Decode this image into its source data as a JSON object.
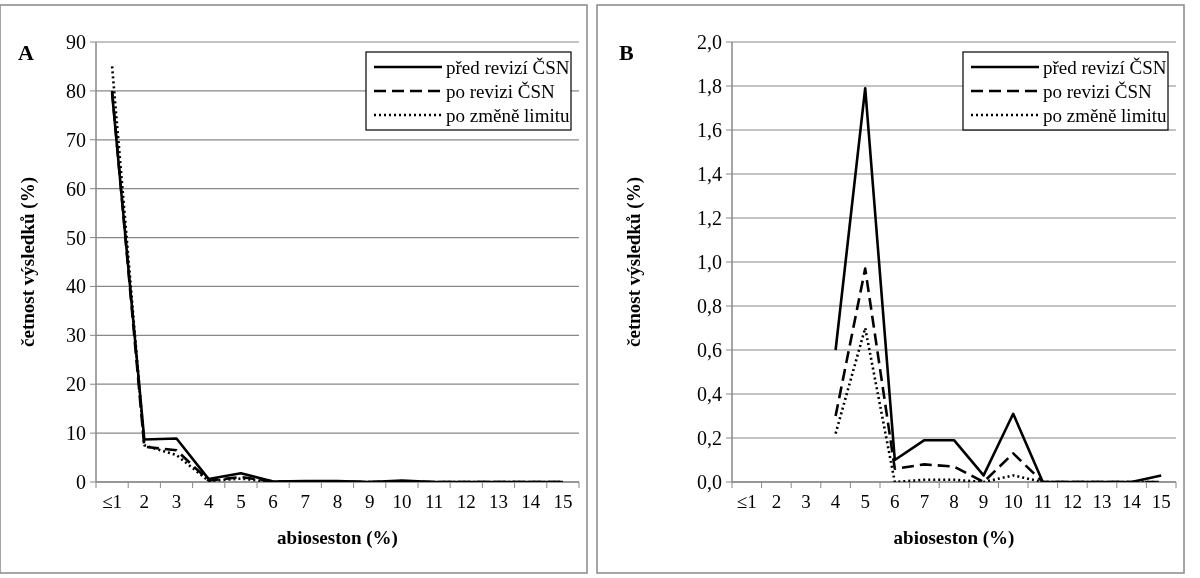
{
  "chart_data": [
    {
      "type": "line",
      "title": "A",
      "xlabel": "abioseston (%)",
      "ylabel": "četnost výsledků (%)",
      "categories": [
        "≤1",
        "2",
        "3",
        "4",
        "5",
        "6",
        "7",
        "8",
        "9",
        "10",
        "11",
        "12",
        "13",
        "14",
        "15"
      ],
      "ylim": [
        0,
        90
      ],
      "yticks": [
        0,
        10,
        20,
        30,
        40,
        50,
        60,
        70,
        80,
        90
      ],
      "grid": "y",
      "legend": "top right",
      "marker": "none",
      "series": [
        {
          "name": "před revizí ČSN",
          "color": "#000000",
          "line_style": "solid",
          "values": [
            79.5,
            8.7,
            8.9,
            0.6,
            1.8,
            0.1,
            0.2,
            0.2,
            0,
            0.3,
            0,
            0,
            0,
            0,
            0
          ]
        },
        {
          "name": "po revizi ČSN",
          "color": "#000000",
          "line_style": "dashed",
          "values": [
            80,
            7.2,
            6.5,
            0.3,
            1,
            0.1,
            0.1,
            0.1,
            0,
            0.1,
            0,
            0,
            0,
            0,
            0
          ]
        },
        {
          "name": "po změně limitu",
          "color": "#000000",
          "line_style": "dotted",
          "values": [
            85,
            7.5,
            5.5,
            0.2,
            0.7,
            0,
            0,
            0,
            0,
            0,
            0,
            0,
            0,
            0,
            0
          ]
        }
      ]
    },
    {
      "type": "line",
      "title": "B",
      "xlabel": "abioseston (%)",
      "ylabel": "četnost výsledků (%)",
      "categories": [
        "≤1",
        "2",
        "3",
        "4",
        "5",
        "6",
        "7",
        "8",
        "9",
        "10",
        "11",
        "12",
        "13",
        "14",
        "15"
      ],
      "ylim": [
        0,
        2
      ],
      "yticks": [
        {
          "value": 0,
          "label": "0,0"
        },
        {
          "value": 0.2,
          "label": "0,2"
        },
        {
          "value": 0.4,
          "label": "0,4"
        },
        {
          "value": 0.6,
          "label": "0,6"
        },
        {
          "value": 0.8,
          "label": "0,8"
        },
        {
          "value": 1,
          "label": "1,0"
        },
        {
          "value": 1.2,
          "label": "1,2"
        },
        {
          "value": 1.4,
          "label": "1,4"
        },
        {
          "value": 1.6,
          "label": "1,6"
        },
        {
          "value": 1.8,
          "label": "1,8"
        },
        {
          "value": 2,
          "label": "2,0"
        }
      ],
      "grid": "y",
      "legend": "top right",
      "marker": "none",
      "series": [
        {
          "name": "před revizí ČSN",
          "color": "#000000",
          "line_style": "solid",
          "values": [
            null,
            null,
            null,
            0.6,
            1.79,
            0.1,
            0.19,
            0.19,
            0.03,
            0.31,
            0,
            0,
            0,
            0,
            0.03
          ]
        },
        {
          "name": "po revizi ČSN",
          "color": "#000000",
          "line_style": "dashed",
          "values": [
            null,
            null,
            null,
            0.3,
            0.97,
            0.06,
            0.08,
            0.07,
            0,
            0.13,
            0,
            0,
            0,
            0,
            0
          ]
        },
        {
          "name": "po změně limitu",
          "color": "#000000",
          "line_style": "dotted",
          "values": [
            null,
            null,
            null,
            0.22,
            0.7,
            0,
            0.01,
            0.01,
            0,
            0.03,
            0,
            0,
            0,
            0,
            0
          ]
        }
      ]
    }
  ]
}
